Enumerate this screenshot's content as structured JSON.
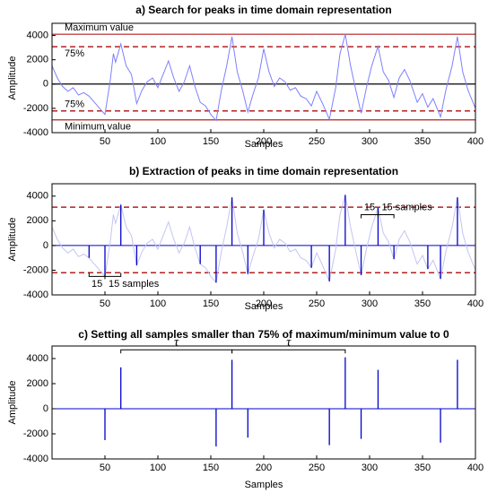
{
  "chart_data": [
    {
      "type": "line",
      "title": "a) Search for peaks in time domain representation",
      "xlabel": "Samples",
      "ylabel": "Amplitude",
      "xlim": [
        0,
        400
      ],
      "xticks": [
        50,
        100,
        150,
        200,
        250,
        300,
        350,
        400
      ],
      "ylim": [
        -4000,
        5000
      ],
      "yticks": [
        -4000,
        -2000,
        0,
        2000,
        4000
      ],
      "series": [
        {
          "style": "line",
          "color": "#7f7fff",
          "x": [
            0,
            5,
            10,
            15,
            20,
            25,
            30,
            35,
            40,
            45,
            50,
            55,
            58,
            60,
            65,
            70,
            75,
            80,
            85,
            90,
            95,
            100,
            105,
            110,
            115,
            120,
            125,
            130,
            135,
            140,
            145,
            150,
            155,
            160,
            165,
            170,
            175,
            180,
            185,
            190,
            195,
            200,
            205,
            210,
            215,
            220,
            225,
            230,
            235,
            240,
            245,
            250,
            255,
            262,
            268,
            272,
            277,
            282,
            287,
            292,
            297,
            302,
            308,
            313,
            318,
            323,
            328,
            333,
            338,
            345,
            350,
            355,
            360,
            367,
            372,
            378,
            383,
            388,
            393,
            400
          ],
          "values": [
            1500,
            500,
            -200,
            -600,
            -300,
            -900,
            -700,
            -1000,
            -1500,
            -2000,
            -2500,
            300,
            2500,
            1800,
            3300,
            1500,
            800,
            -1600,
            -500,
            200,
            500,
            -300,
            800,
            1900,
            500,
            -600,
            200,
            1500,
            -200,
            -1500,
            -1800,
            -2500,
            -3000,
            -500,
            1500,
            3900,
            1000,
            -500,
            -2300,
            -800,
            500,
            2900,
            1000,
            -200,
            500,
            200,
            -500,
            -300,
            -1000,
            -1200,
            -1800,
            -600,
            -1500,
            -2900,
            -300,
            2500,
            4100,
            1500,
            -500,
            -2400,
            -300,
            1500,
            3100,
            1000,
            300,
            -1100,
            500,
            1200,
            300,
            -1500,
            -800,
            -1900,
            -1200,
            -2700,
            -500,
            1500,
            3900,
            1000,
            -500,
            -2000
          ]
        }
      ],
      "hlines": [
        {
          "value": 4100,
          "color": "#b22222",
          "dashed": false,
          "label": "Maximum value",
          "label_side": "above"
        },
        {
          "value": 3075,
          "color": "#b22222",
          "dashed": true,
          "label": "75%",
          "label_side": "below"
        },
        {
          "value": 0,
          "color": "#000000",
          "dashed": false
        },
        {
          "value": -2212,
          "color": "#b22222",
          "dashed": true,
          "label": "75%",
          "label_side": "above"
        },
        {
          "value": -2950,
          "color": "#b22222",
          "dashed": false,
          "label": "Minimum value",
          "label_side": "below"
        }
      ]
    },
    {
      "type": "stem",
      "title": "b) Extraction of peaks in time domain representation",
      "xlabel": "Samples",
      "ylabel": "Amplitude",
      "xlim": [
        0,
        400
      ],
      "xticks": [
        50,
        100,
        150,
        200,
        250,
        300,
        350,
        400
      ],
      "ylim": [
        -4000,
        5000
      ],
      "yticks": [
        -4000,
        -2000,
        0,
        2000,
        4000
      ],
      "series": [
        {
          "style": "line",
          "color": "#c4c4f2",
          "x": [
            0,
            5,
            10,
            15,
            20,
            25,
            30,
            35,
            40,
            45,
            50,
            55,
            58,
            60,
            65,
            70,
            75,
            80,
            85,
            90,
            95,
            100,
            105,
            110,
            115,
            120,
            125,
            130,
            135,
            140,
            145,
            150,
            155,
            160,
            165,
            170,
            175,
            180,
            185,
            190,
            195,
            200,
            205,
            210,
            215,
            220,
            225,
            230,
            235,
            240,
            245,
            250,
            255,
            262,
            268,
            272,
            277,
            282,
            287,
            292,
            297,
            302,
            308,
            313,
            318,
            323,
            328,
            333,
            338,
            345,
            350,
            355,
            360,
            367,
            372,
            378,
            383,
            388,
            393,
            400
          ],
          "values": [
            1500,
            500,
            -200,
            -600,
            -300,
            -900,
            -700,
            -1000,
            -1500,
            -2000,
            -2500,
            300,
            2500,
            1800,
            3300,
            1500,
            800,
            -1600,
            -500,
            200,
            500,
            -300,
            800,
            1900,
            500,
            -600,
            200,
            1500,
            -200,
            -1500,
            -1800,
            -2500,
            -3000,
            -500,
            1500,
            3900,
            1000,
            -500,
            -2300,
            -800,
            500,
            2900,
            1000,
            -200,
            500,
            200,
            -500,
            -300,
            -1000,
            -1200,
            -1800,
            -600,
            -1500,
            -2900,
            -300,
            2500,
            4100,
            1500,
            -500,
            -2400,
            -300,
            1500,
            3100,
            1000,
            300,
            -1100,
            500,
            1200,
            300,
            -1500,
            -800,
            -1900,
            -1200,
            -2700,
            -500,
            1500,
            3900,
            1000,
            -500,
            -2000
          ]
        },
        {
          "style": "stem",
          "color": "#0000cc",
          "x": [
            35,
            50,
            65,
            80,
            140,
            155,
            170,
            185,
            200,
            245,
            262,
            277,
            292,
            308,
            323,
            355,
            367,
            383
          ],
          "values": [
            -1000,
            -2500,
            3300,
            -1600,
            -1500,
            -3000,
            3900,
            -2300,
            2900,
            -1800,
            -2900,
            4100,
            -2400,
            3100,
            -1100,
            -1900,
            -2700,
            3900
          ]
        }
      ],
      "hlines": [
        {
          "value": 3100,
          "color": "#b22222",
          "dashed": true
        },
        {
          "value": -2200,
          "color": "#b22222",
          "dashed": true
        }
      ],
      "brackets": [
        {
          "x": [
            35,
            50,
            65
          ],
          "y": -2500,
          "labels": [
            "15",
            "15 samples"
          ],
          "above": false
        },
        {
          "x": [
            292,
            308,
            323
          ],
          "y": 2500,
          "labels": [
            "15",
            "15 samples"
          ],
          "above": true
        }
      ]
    },
    {
      "type": "stem",
      "title": "c) Setting all samples smaller than 75% of maximum/minimum value to 0",
      "xlabel": "Samples",
      "ylabel": "Amplitude",
      "xlim": [
        0,
        400
      ],
      "xticks": [
        50,
        100,
        150,
        200,
        250,
        300,
        350,
        400
      ],
      "ylim": [
        -4000,
        5000
      ],
      "yticks": [
        -4000,
        -2000,
        0,
        2000,
        4000
      ],
      "series": [
        {
          "style": "stem",
          "color": "#0000cc",
          "x": [
            50,
            65,
            155,
            170,
            185,
            262,
            277,
            292,
            308,
            367,
            383
          ],
          "values": [
            -2500,
            3300,
            -3000,
            3900,
            -2300,
            -2900,
            4100,
            -2400,
            3100,
            -2700,
            3900
          ]
        }
      ],
      "brackets": [
        {
          "x": [
            65,
            170
          ],
          "y": 4700,
          "labels": [
            "τ"
          ],
          "above": true
        },
        {
          "x": [
            170,
            277
          ],
          "y": 4700,
          "labels": [
            "τ"
          ],
          "above": true
        }
      ]
    }
  ]
}
